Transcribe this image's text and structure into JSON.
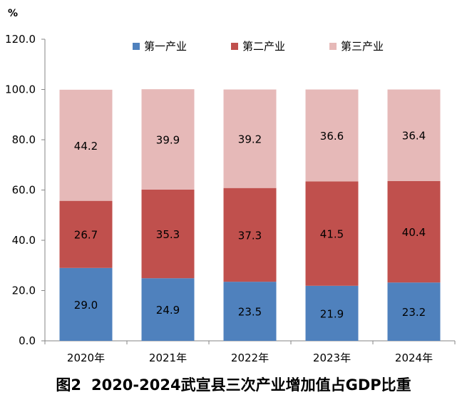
{
  "caption": {
    "fig_label": "图2",
    "fig_title": "2020-2024武宣县三次产业增加值占GDP比重"
  },
  "chart_data": {
    "type": "bar",
    "stacked": true,
    "unit_label": "%",
    "categories": [
      "2020年",
      "2021年",
      "2022年",
      "2023年",
      "2024年"
    ],
    "series": [
      {
        "name": "第一产业",
        "color": "#4F81BD",
        "values": [
          29.0,
          24.9,
          23.5,
          21.9,
          23.2
        ],
        "labels": [
          "29.0",
          "24.9",
          "23.5",
          "21.9",
          "23.2"
        ]
      },
      {
        "name": "第二产业",
        "color": "#C0504D",
        "values": [
          26.7,
          35.3,
          37.3,
          41.5,
          40.4
        ],
        "labels": [
          "26.7",
          "35.3",
          "37.3",
          "41.5",
          "40.4"
        ]
      },
      {
        "name": "第三产业",
        "color": "#E6B9B8",
        "values": [
          44.2,
          39.9,
          39.2,
          36.6,
          36.4
        ],
        "labels": [
          "44.2",
          "39.9",
          "39.2",
          "36.6",
          "36.4"
        ]
      }
    ],
    "ylim": [
      0,
      120
    ],
    "yticks": [
      "0.0",
      "20.0",
      "40.0",
      "60.0",
      "80.0",
      "100.0",
      "120.0"
    ],
    "legend_position": "top",
    "grid": false
  }
}
